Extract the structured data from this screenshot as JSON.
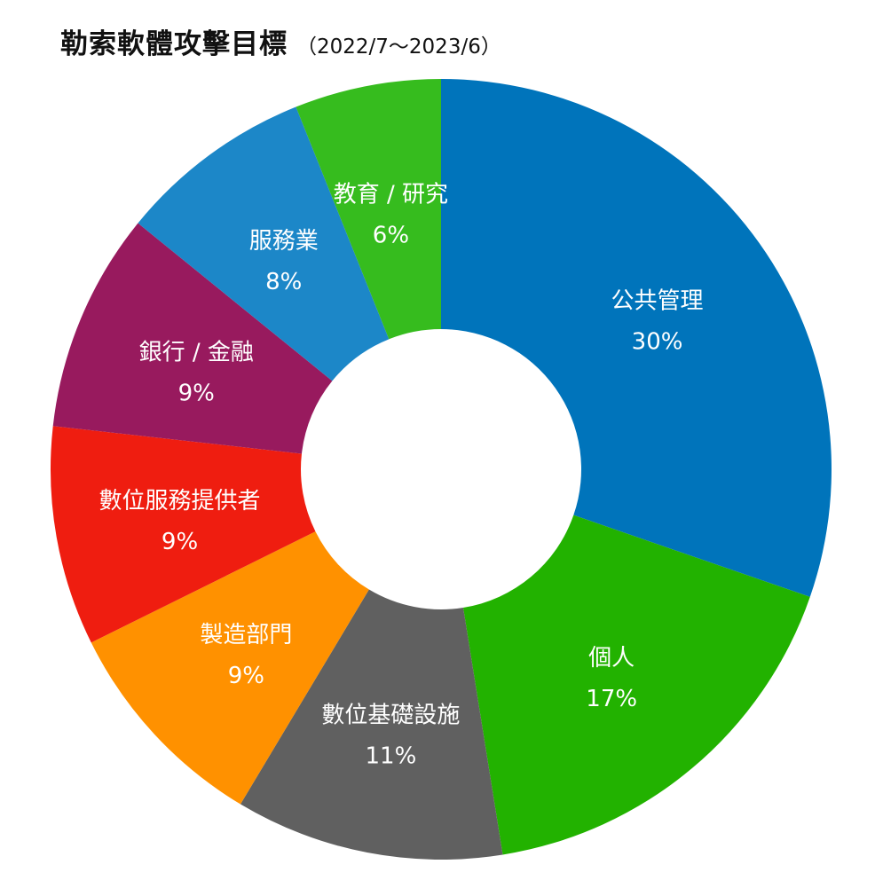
{
  "header": {
    "title": "勒索軟體攻擊目標",
    "subtitle": "（2022/7～2023/6）"
  },
  "chart_data": {
    "type": "pie",
    "categories": [
      "公共管理",
      "個人",
      "數位基礎設施",
      "製造部門",
      "數位服務提供者",
      "銀行 / 金融",
      "服務業",
      "教育 / 研究"
    ],
    "values": [
      30,
      17,
      11,
      9,
      9,
      9,
      8,
      6
    ],
    "value_labels": [
      "30%",
      "17%",
      "11%",
      "9%",
      "9%",
      "9%",
      "8%",
      "6%"
    ],
    "colors": [
      "#0074bb",
      "#22b200",
      "#606060",
      "#ff9100",
      "#ef1d10",
      "#981a5e",
      "#1c87c8",
      "#36bc1e"
    ],
    "donut": true,
    "start": "12 o'clock",
    "direction": "clockwise"
  }
}
